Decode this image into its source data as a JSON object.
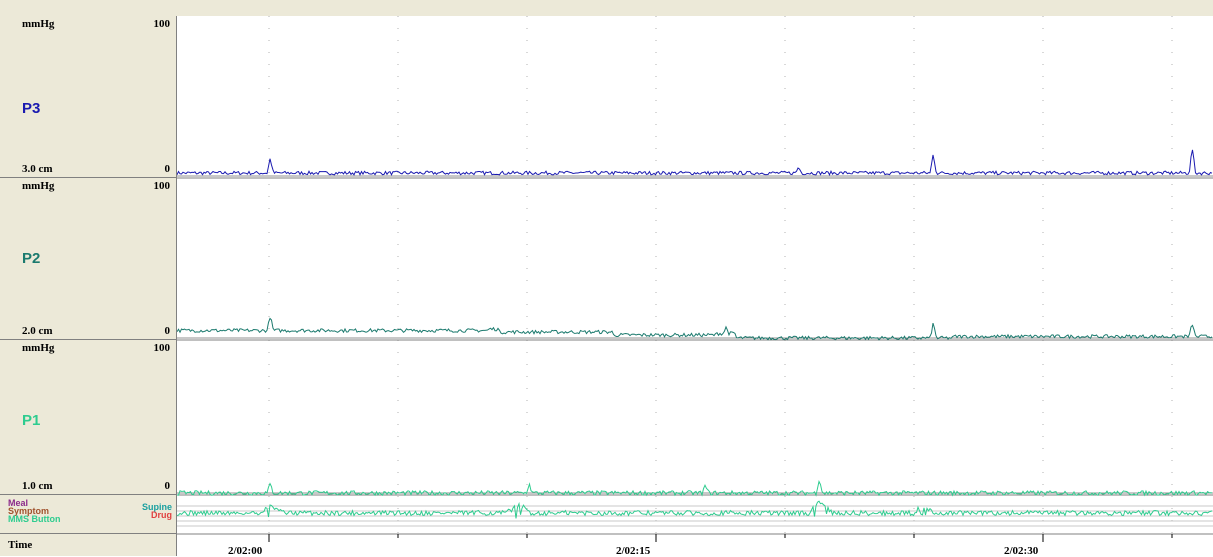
{
  "channels": [
    {
      "name": "P3",
      "unit": "mmHg",
      "max": "100",
      "min": "0",
      "position": "3.0 cm",
      "color": "#1a1ab0"
    },
    {
      "name": "P2",
      "unit": "mmHg",
      "max": "100",
      "min": "0",
      "position": "2.0 cm",
      "color": "#1b7a6e"
    },
    {
      "name": "P1",
      "unit": "mmHg",
      "max": "100",
      "min": "0",
      "position": "1.0 cm",
      "color": "#2ecc8f"
    }
  ],
  "events": {
    "meal": "Meal",
    "symptom": "Symptom",
    "mms_button": "MMS Button",
    "supine": "Supine",
    "drug": "Drug",
    "colors": {
      "meal": "#8b2a8b",
      "symptom": "#a0522d",
      "mms_button": "#2ecc8f",
      "supine": "#1aa0a0",
      "drug": "#e04040"
    }
  },
  "time": {
    "label": "Time",
    "ticks": [
      "2/02:00",
      "2/02:15",
      "2/02:30"
    ]
  },
  "chart_data": {
    "type": "line",
    "xlabel": "Time",
    "ylabel": "mmHg",
    "ylim": [
      0,
      100
    ],
    "x_ticks": [
      "2/02:00",
      "2/02:15",
      "2/02:30"
    ],
    "grid": true,
    "series": [
      {
        "name": "P3",
        "baseline": 2,
        "noise": 1.2,
        "spikes": [
          [
            0.09,
            10
          ],
          [
            0.73,
            13
          ],
          [
            0.98,
            17
          ],
          [
            0.6,
            4
          ]
        ]
      },
      {
        "name": "P2",
        "baseline": 5,
        "noise": 1.2,
        "spikes": [
          [
            0.09,
            10
          ],
          [
            0.53,
            4
          ],
          [
            0.73,
            10
          ],
          [
            0.98,
            9
          ]
        ],
        "steps": [
          [
            0.0,
            5
          ],
          [
            0.3,
            6
          ],
          [
            0.31,
            4
          ],
          [
            0.42,
            2
          ],
          [
            0.52,
            3
          ],
          [
            0.54,
            0
          ],
          [
            0.7,
            0
          ],
          [
            0.75,
            1
          ]
        ]
      },
      {
        "name": "P1",
        "baseline": 0,
        "noise": 1.5,
        "spikes": [
          [
            0.09,
            6
          ],
          [
            0.34,
            6
          ],
          [
            0.62,
            10
          ],
          [
            0.51,
            5
          ]
        ]
      }
    ]
  }
}
